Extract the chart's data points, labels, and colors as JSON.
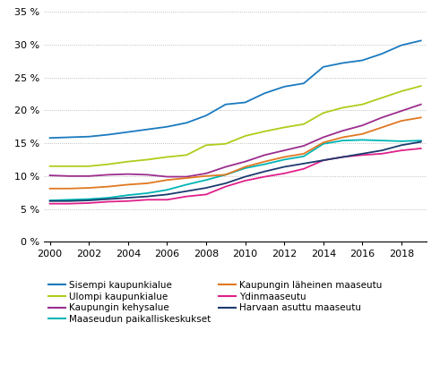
{
  "years": [
    2000,
    2001,
    2002,
    2003,
    2004,
    2005,
    2006,
    2007,
    2008,
    2009,
    2010,
    2011,
    2012,
    2013,
    2014,
    2015,
    2016,
    2017,
    2018,
    2019
  ],
  "series": {
    "Sisempi kaupunkialue": [
      15.8,
      15.9,
      16.0,
      16.3,
      16.7,
      17.1,
      17.5,
      18.1,
      19.2,
      20.9,
      21.2,
      22.6,
      23.6,
      24.1,
      26.6,
      27.2,
      27.6,
      28.6,
      29.9,
      30.6
    ],
    "Ulompi kaupunkialue": [
      11.5,
      11.5,
      11.5,
      11.8,
      12.2,
      12.5,
      12.9,
      13.2,
      14.7,
      14.9,
      16.1,
      16.8,
      17.4,
      17.9,
      19.6,
      20.4,
      20.9,
      21.9,
      22.9,
      23.7
    ],
    "Kaupungin kehysalue": [
      10.1,
      10.0,
      10.0,
      10.2,
      10.3,
      10.2,
      9.9,
      9.9,
      10.4,
      11.4,
      12.2,
      13.2,
      13.9,
      14.6,
      15.9,
      16.9,
      17.7,
      18.9,
      19.9,
      20.9
    ],
    "Maaseudun paikalliskeskukset": [
      6.3,
      6.4,
      6.5,
      6.7,
      7.1,
      7.4,
      7.9,
      8.7,
      9.4,
      10.2,
      11.2,
      11.8,
      12.5,
      13.0,
      14.9,
      15.4,
      15.5,
      15.4,
      15.3,
      15.4
    ],
    "Kaupungin läheinen maaseutu": [
      8.1,
      8.1,
      8.2,
      8.4,
      8.7,
      8.9,
      9.4,
      9.7,
      10.0,
      10.2,
      11.4,
      12.2,
      12.9,
      13.4,
      15.1,
      15.9,
      16.4,
      17.4,
      18.4,
      18.9
    ],
    "Ydinmaaseutu": [
      5.8,
      5.8,
      5.9,
      6.1,
      6.2,
      6.4,
      6.4,
      6.9,
      7.2,
      8.4,
      9.3,
      9.9,
      10.4,
      11.1,
      12.4,
      12.9,
      13.2,
      13.4,
      13.9,
      14.2
    ],
    "Harvaan asuttu maaseutu": [
      6.2,
      6.2,
      6.3,
      6.5,
      6.7,
      6.9,
      7.2,
      7.7,
      8.2,
      8.9,
      9.9,
      10.7,
      11.4,
      11.9,
      12.4,
      12.9,
      13.4,
      13.9,
      14.7,
      15.2
    ]
  },
  "colors": {
    "Sisempi kaupunkialue": "#1a7abf",
    "Ulompi kaupunkialue": "#b0cc1a",
    "Kaupungin kehysalue": "#9b2d8e",
    "Maaseudun paikalliskeskukset": "#00b5b5",
    "Kaupungin läheinen maaseutu": "#e07820",
    "Ydinmaaseutu": "#e0208a",
    "Harvaan asuttu maaseutu": "#1a3a6e"
  },
  "ylim": [
    0,
    35
  ],
  "yticks": [
    0,
    5,
    10,
    15,
    20,
    25,
    30,
    35
  ],
  "xlim": [
    2000,
    2019
  ],
  "xticks": [
    2000,
    2002,
    2004,
    2006,
    2008,
    2010,
    2012,
    2014,
    2016,
    2018
  ],
  "legend_col1": [
    "Sisempi kaupunkialue",
    "Kaupungin kehysalue",
    "Kaupungin läheinen maaseutu",
    "Harvaan asuttu maaseutu"
  ],
  "legend_col2": [
    "Ulompi kaupunkialue",
    "Maaseudun paikalliskeskukset",
    "Ydinmaaseutu"
  ],
  "legend_order": [
    "Sisempi kaupunkialue",
    "Ulompi kaupunkialue",
    "Kaupungin kehysalue",
    "Maaseudun paikalliskeskukset",
    "Kaupungin läheinen maaseutu",
    "Ydinmaaseutu",
    "Harvaan asuttu maaseutu"
  ]
}
